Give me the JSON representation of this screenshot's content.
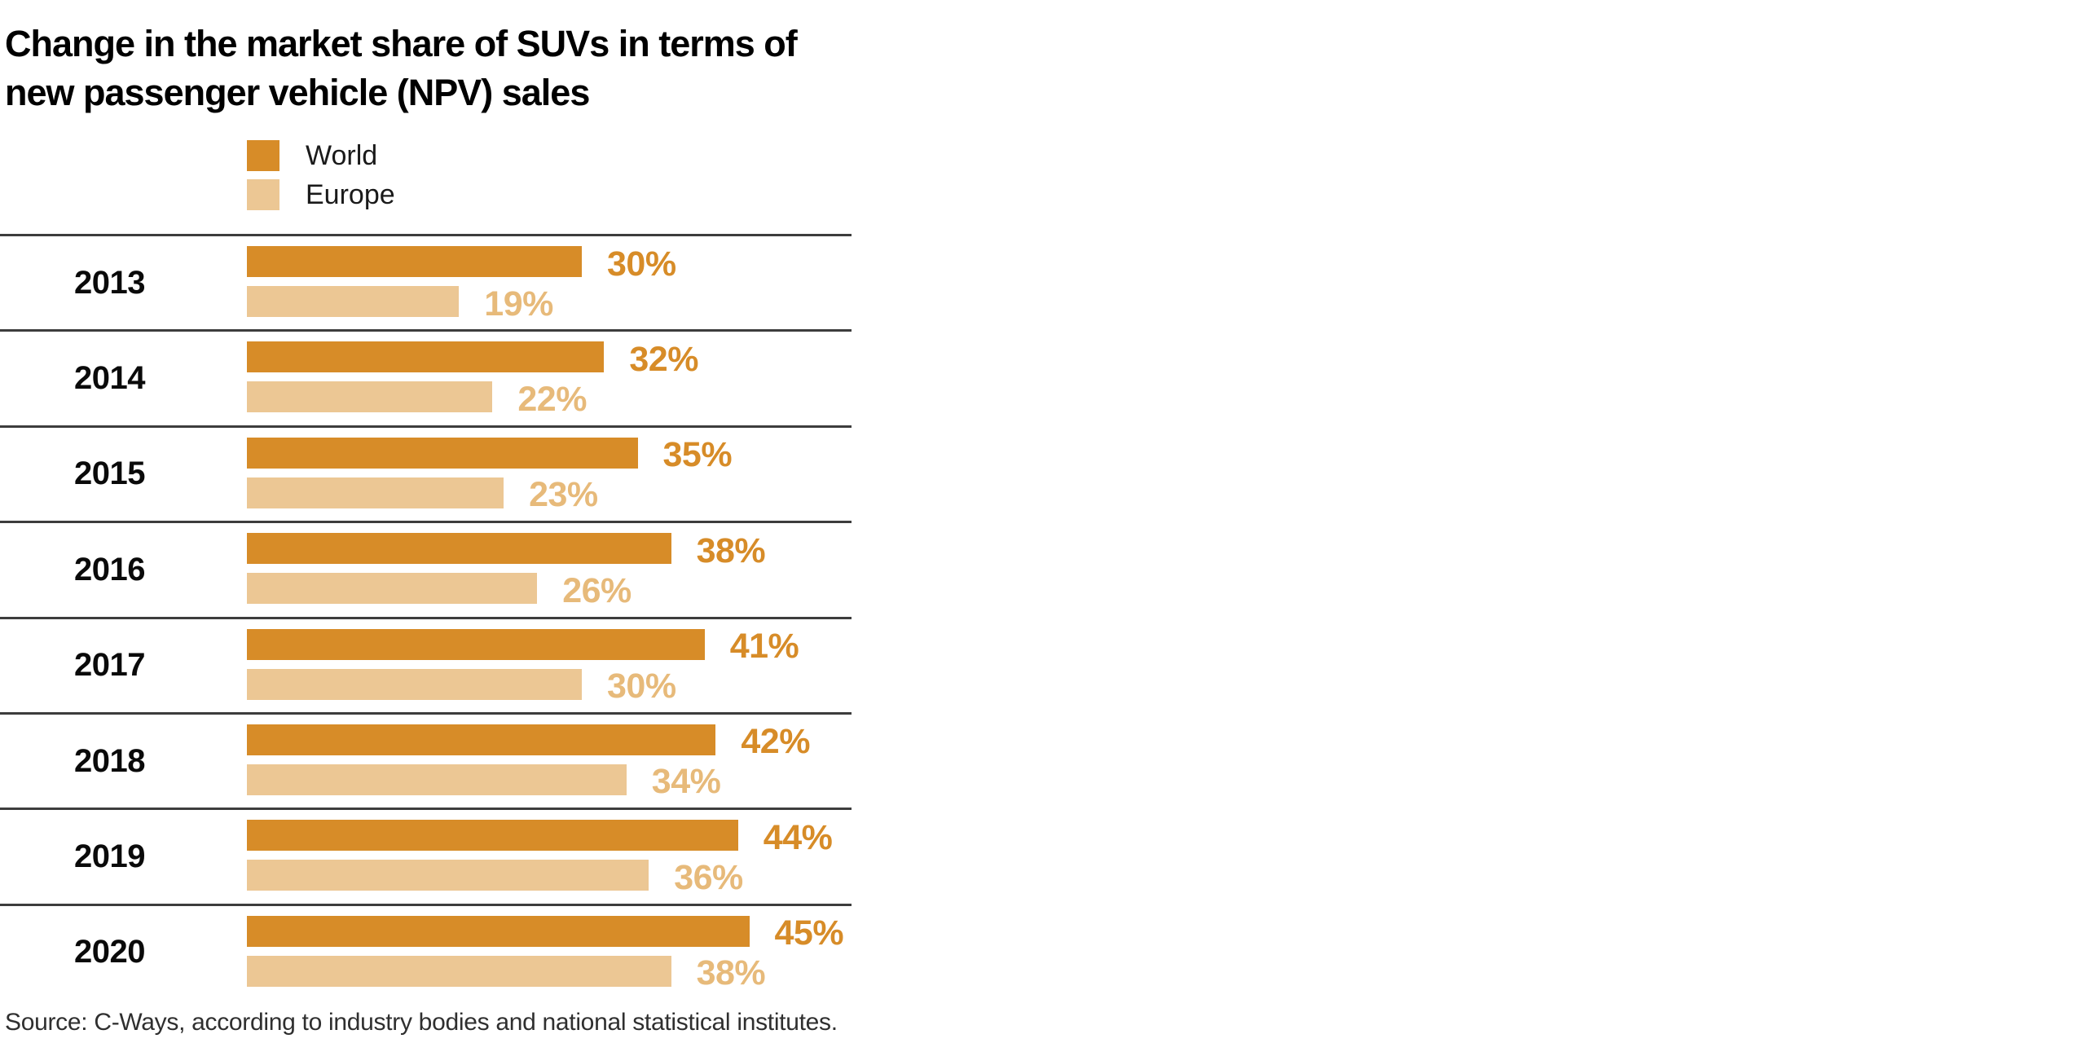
{
  "title": {
    "line1": "Change in the market share of SUVs in terms of",
    "line2": "new passenger vehicle (NPV) sales"
  },
  "legend": [
    {
      "label": "World",
      "color": "#D78C28"
    },
    {
      "label": "Europe",
      "color": "#ECC794"
    }
  ],
  "source": "Source: C-Ways, according to industry bodies and national statistical institutes.",
  "colors": {
    "world_bar": "#D78C28",
    "europe_bar": "#ECC794",
    "world_value_label": "#D78C28",
    "europe_value_label": "#E7BA7A",
    "separator_line": "#3d3d3d",
    "title_text": "#000000"
  },
  "chart_data": {
    "type": "bar",
    "orientation": "horizontal",
    "title": "Change in the market share of SUVs in terms of new passenger vehicle (NPV) sales",
    "unit": "%",
    "xlim": [
      0,
      100
    ],
    "grid": "horizontal-row-separators",
    "legend_position": "top-left",
    "categories": [
      "2013",
      "2014",
      "2015",
      "2016",
      "2017",
      "2018",
      "2019",
      "2020"
    ],
    "series": [
      {
        "name": "World",
        "color": "#D78C28",
        "label_color": "#D78C28",
        "values": [
          30,
          32,
          35,
          38,
          41,
          42,
          44,
          45
        ],
        "labels": [
          "30%",
          "32%",
          "35%",
          "38%",
          "41%",
          "42%",
          "44%",
          "45%"
        ]
      },
      {
        "name": "Europe",
        "color": "#ECC794",
        "label_color": "#E7BA7A",
        "values": [
          19,
          22,
          23,
          26,
          30,
          34,
          36,
          38
        ],
        "labels": [
          "19%",
          "22%",
          "23%",
          "26%",
          "30%",
          "34%",
          "36%",
          "38%"
        ]
      }
    ]
  }
}
